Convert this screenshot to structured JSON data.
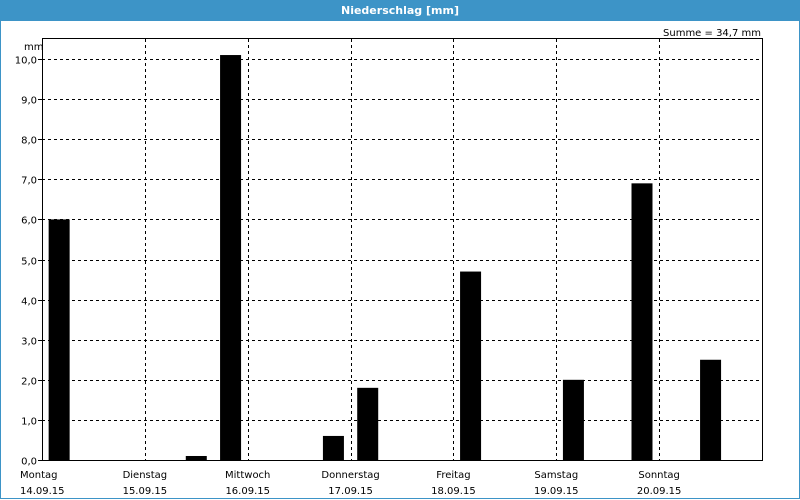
{
  "window": {
    "title": "Niederschlag [mm]"
  },
  "chart_data": {
    "type": "bar",
    "title": "Niederschlag [mm]",
    "ylabel": "mm",
    "summary": "Summe = 34,7 mm",
    "ylim": [
      0,
      10.5
    ],
    "yticks": [
      "0,0",
      "1,0",
      "2,0",
      "3,0",
      "4,0",
      "5,0",
      "6,0",
      "7,0",
      "8,0",
      "9,0",
      "10,0"
    ],
    "days": [
      {
        "name": "Montag",
        "date": "14.09.15"
      },
      {
        "name": "Dienstag",
        "date": "15.09.15"
      },
      {
        "name": "Mittwoch",
        "date": "16.09.15"
      },
      {
        "name": "Donnerstag",
        "date": "17.09.15"
      },
      {
        "name": "Freitag",
        "date": "18.09.15"
      },
      {
        "name": "Samstag",
        "date": "19.09.15"
      },
      {
        "name": "Sonntag",
        "date": "20.09.15"
      }
    ],
    "slots_per_day": 3,
    "values": [
      6.0,
      0,
      0,
      0,
      0.1,
      10.1,
      0,
      0,
      0.6,
      1.8,
      0,
      0,
      4.7,
      0,
      0,
      2.0,
      0,
      6.9,
      0,
      2.5,
      0
    ],
    "bar_color": "#000000",
    "grid": true,
    "grid_style": "dashed"
  }
}
